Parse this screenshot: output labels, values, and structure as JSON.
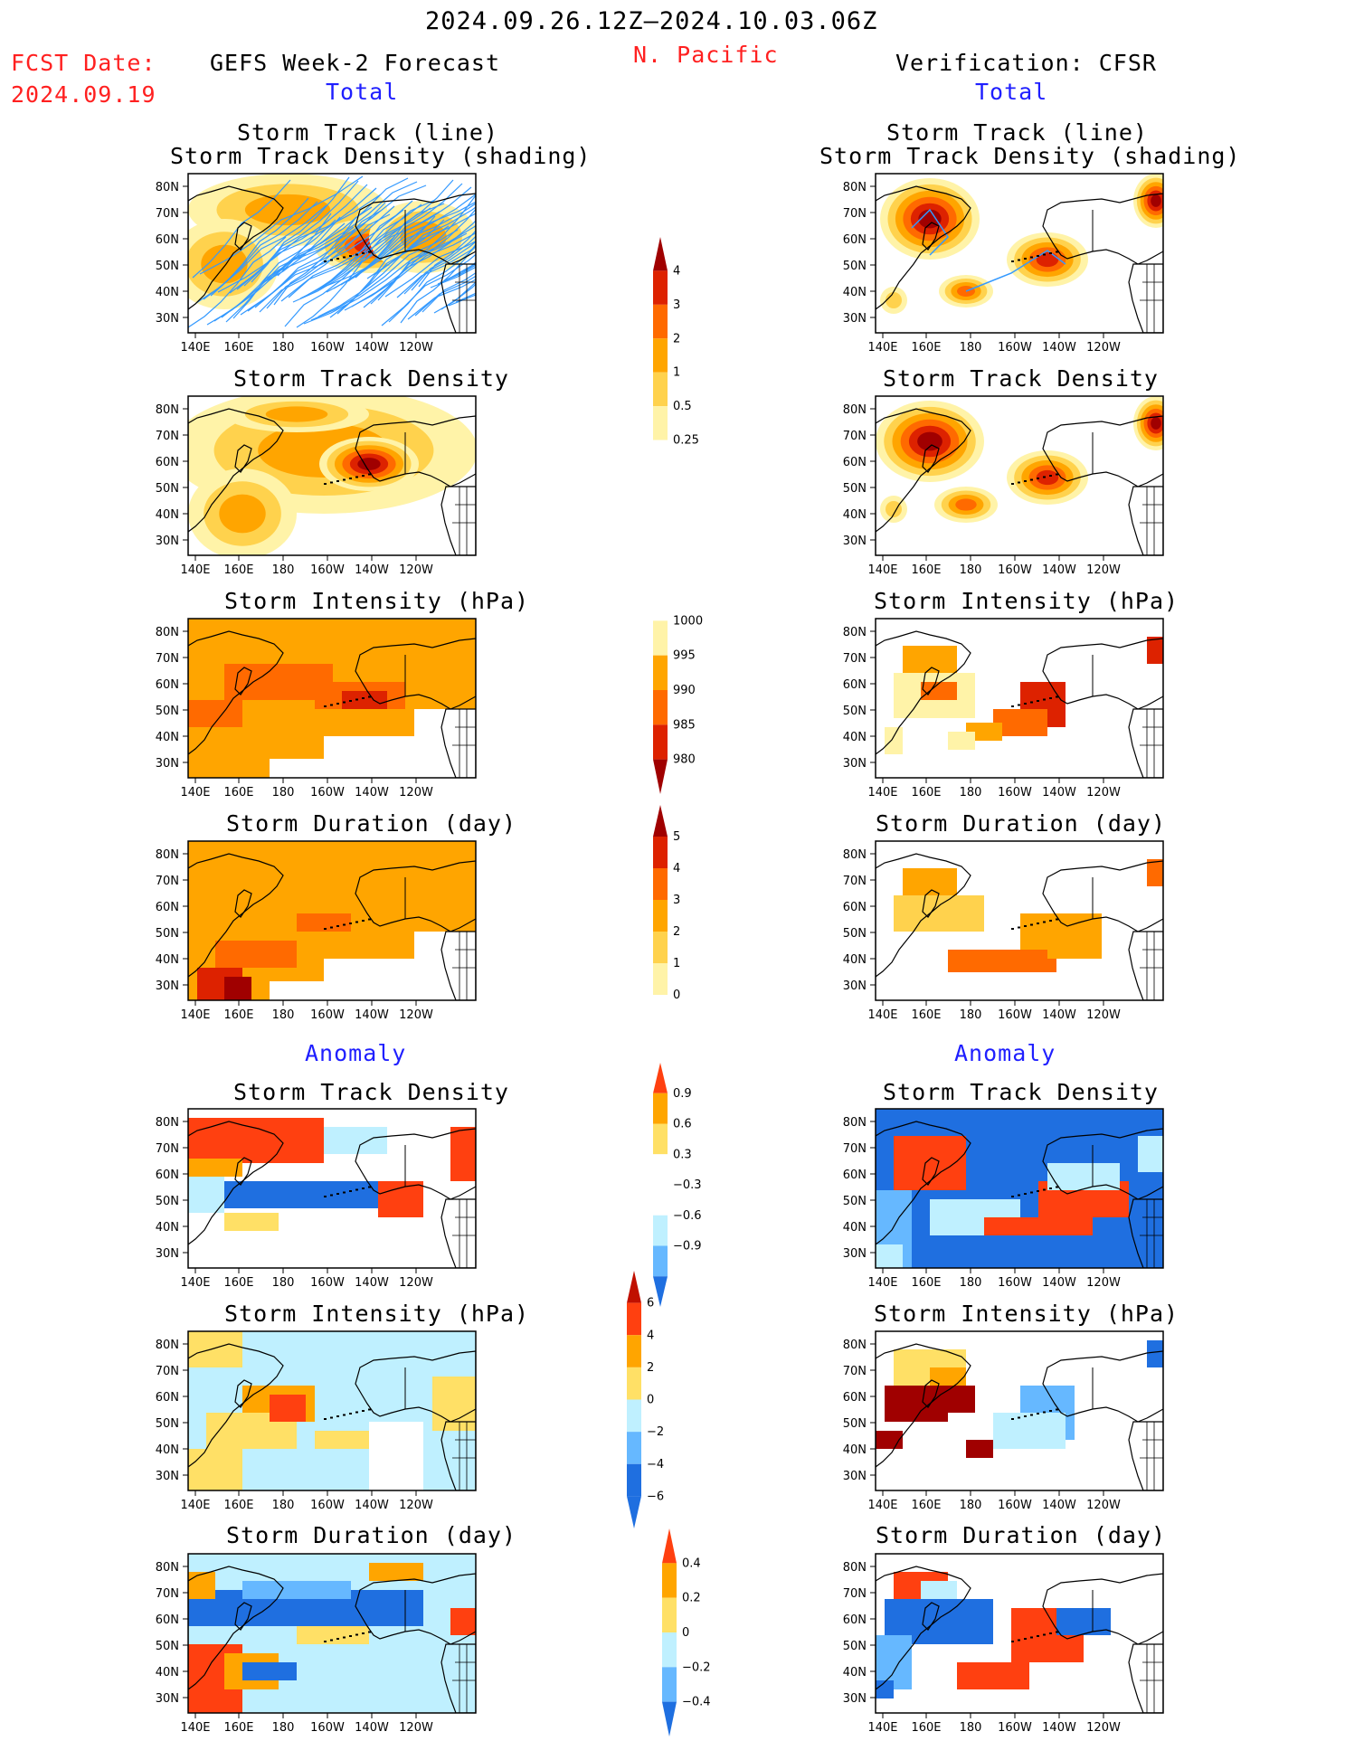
{
  "header": {
    "period": "2024.09.26.12Z–2024.10.03.06Z",
    "region": "N. Pacific",
    "fcst_date_label": "FCST Date:",
    "fcst_date": "2024.09.19",
    "left_title": "GEFS Week-2 Forecast",
    "right_title": "Verification: CFSR",
    "total_label": "Total",
    "anomaly_label": "Anomaly"
  },
  "panel_titles": {
    "track_line": "Storm Track (line)",
    "track_density_shading": "Storm Track Density (shading)",
    "track_density": "Storm Track Density",
    "intensity": "Storm Intensity (hPa)",
    "duration": "Storm Duration (day)"
  },
  "axes": {
    "lat_labels": [
      "80N",
      "70N",
      "60N",
      "50N",
      "40N",
      "30N"
    ],
    "lon_labels": [
      "140E",
      "160E",
      "180",
      "160W",
      "140W",
      "120W"
    ]
  },
  "colorbars": {
    "density": [
      "4",
      "3",
      "2",
      "1",
      "0.5",
      "0.25"
    ],
    "intensity": [
      "1000",
      "995",
      "990",
      "985",
      "980"
    ],
    "duration": [
      "5",
      "4",
      "3",
      "2",
      "1",
      "0"
    ],
    "density_anom": [
      "0.9",
      "0.6",
      "0.3",
      "−0.3",
      "−0.6",
      "−0.9"
    ],
    "intensity_anom": [
      "6",
      "4",
      "2",
      "0",
      "−2",
      "−4",
      "−6"
    ],
    "duration_anom": [
      "0.4",
      "0.2",
      "0",
      "−0.2",
      "−0.4"
    ]
  },
  "colors": {
    "seq": [
      "#ffffff",
      "#fff3a8",
      "#ffd24d",
      "#ffa500",
      "#ff6a00",
      "#dd2200",
      "#a00000"
    ],
    "anom_pos": [
      "#ffe066",
      "#ffa500",
      "#ff4010"
    ],
    "anom_neg": [
      "#bff0ff",
      "#66b8ff",
      "#1f6fe0"
    ],
    "track": "#3399ff",
    "red_text": "#ff2020",
    "blue_text": "#1f1fff"
  }
}
